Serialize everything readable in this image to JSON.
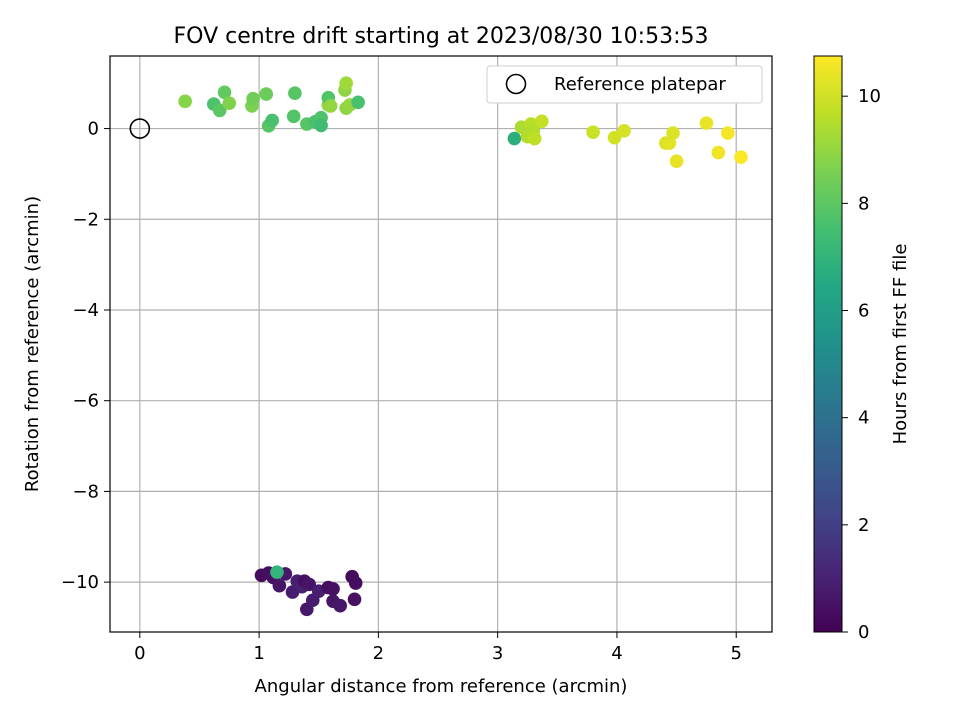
{
  "chart_data": {
    "type": "scatter",
    "title": "FOV centre drift starting at 2023/08/30 10:53:53",
    "xlabel": "Angular distance from reference (arcmin)",
    "ylabel": "Rotation from reference (arcmin)",
    "xlim": [
      -0.25,
      5.3
    ],
    "ylim": [
      -11.1,
      1.6
    ],
    "xticks": [
      0,
      1,
      2,
      3,
      4,
      5
    ],
    "xtick_labels": [
      "0",
      "1",
      "2",
      "3",
      "4",
      "5"
    ],
    "yticks": [
      0,
      -2,
      -4,
      -6,
      -8,
      -10
    ],
    "ytick_labels": [
      "0",
      "−2",
      "−4",
      "−6",
      "−8",
      "−10"
    ],
    "grid": true,
    "legend": {
      "position": "top-right",
      "label": "Reference platepar"
    },
    "reference_point": {
      "x": 0,
      "y": 0
    },
    "colorbar": {
      "label": "Hours from first FF file",
      "colormap": "viridis",
      "range": [
        0,
        10.75
      ],
      "ticks": [
        0,
        2,
        4,
        6,
        8,
        10
      ],
      "tick_labels": [
        "0",
        "2",
        "4",
        "6",
        "8",
        "10"
      ]
    },
    "points": [
      {
        "x": 1.02,
        "y": -9.85,
        "c": 0.3
      },
      {
        "x": 1.08,
        "y": -9.8,
        "c": 0.4
      },
      {
        "x": 1.12,
        "y": -9.9,
        "c": 0.5
      },
      {
        "x": 1.17,
        "y": -10.08,
        "c": 0.6
      },
      {
        "x": 1.22,
        "y": -9.82,
        "c": 0.7
      },
      {
        "x": 1.28,
        "y": -10.22,
        "c": 0.8
      },
      {
        "x": 1.32,
        "y": -9.98,
        "c": 0.9
      },
      {
        "x": 1.36,
        "y": -10.1,
        "c": 1.0
      },
      {
        "x": 1.38,
        "y": -9.98,
        "c": 0.5
      },
      {
        "x": 1.42,
        "y": -10.05,
        "c": 0.6
      },
      {
        "x": 1.4,
        "y": -10.6,
        "c": 0.7
      },
      {
        "x": 1.45,
        "y": -10.4,
        "c": 0.8
      },
      {
        "x": 1.5,
        "y": -10.2,
        "c": 0.9
      },
      {
        "x": 1.58,
        "y": -10.12,
        "c": 0.4
      },
      {
        "x": 1.62,
        "y": -10.15,
        "c": 0.5
      },
      {
        "x": 1.62,
        "y": -10.42,
        "c": 0.6
      },
      {
        "x": 1.68,
        "y": -10.52,
        "c": 0.7
      },
      {
        "x": 1.78,
        "y": -9.88,
        "c": 0.3
      },
      {
        "x": 1.81,
        "y": -10.02,
        "c": 0.4
      },
      {
        "x": 1.8,
        "y": -10.38,
        "c": 0.5
      },
      {
        "x": 1.15,
        "y": -9.78,
        "c": 7.0
      },
      {
        "x": 0.38,
        "y": 0.6,
        "c": 8.8
      },
      {
        "x": 0.62,
        "y": 0.54,
        "c": 7.7
      },
      {
        "x": 0.67,
        "y": 0.4,
        "c": 8.0
      },
      {
        "x": 0.71,
        "y": 0.8,
        "c": 8.1
      },
      {
        "x": 0.75,
        "y": 0.56,
        "c": 8.7
      },
      {
        "x": 0.94,
        "y": 0.5,
        "c": 8.6
      },
      {
        "x": 0.95,
        "y": 0.66,
        "c": 8.4
      },
      {
        "x": 1.06,
        "y": 0.76,
        "c": 8.3
      },
      {
        "x": 1.08,
        "y": 0.06,
        "c": 7.9
      },
      {
        "x": 1.11,
        "y": 0.18,
        "c": 7.6
      },
      {
        "x": 1.29,
        "y": 0.27,
        "c": 7.8
      },
      {
        "x": 1.3,
        "y": 0.78,
        "c": 7.9
      },
      {
        "x": 1.4,
        "y": 0.1,
        "c": 7.9
      },
      {
        "x": 1.47,
        "y": 0.15,
        "c": 7.6
      },
      {
        "x": 1.52,
        "y": 0.24,
        "c": 7.7
      },
      {
        "x": 1.52,
        "y": 0.07,
        "c": 7.4
      },
      {
        "x": 1.58,
        "y": 0.52,
        "c": 8.9
      },
      {
        "x": 1.58,
        "y": 0.68,
        "c": 7.8
      },
      {
        "x": 1.6,
        "y": 0.5,
        "c": 9.0
      },
      {
        "x": 1.72,
        "y": 0.85,
        "c": 8.9
      },
      {
        "x": 1.73,
        "y": 1.0,
        "c": 9.2
      },
      {
        "x": 1.73,
        "y": 0.45,
        "c": 8.9
      },
      {
        "x": 1.76,
        "y": 0.52,
        "c": 9.0
      },
      {
        "x": 1.83,
        "y": 0.58,
        "c": 7.6
      },
      {
        "x": 3.14,
        "y": -0.22,
        "c": 6.8
      },
      {
        "x": 3.2,
        "y": 0.03,
        "c": 9.4
      },
      {
        "x": 3.25,
        "y": -0.18,
        "c": 9.5
      },
      {
        "x": 3.28,
        "y": 0.1,
        "c": 9.6
      },
      {
        "x": 3.3,
        "y": -0.05,
        "c": 9.5
      },
      {
        "x": 3.31,
        "y": -0.22,
        "c": 9.7
      },
      {
        "x": 3.37,
        "y": 0.16,
        "c": 9.8
      },
      {
        "x": 3.8,
        "y": -0.08,
        "c": 9.9
      },
      {
        "x": 3.98,
        "y": -0.2,
        "c": 10.0
      },
      {
        "x": 4.06,
        "y": -0.05,
        "c": 10.1
      },
      {
        "x": 4.41,
        "y": -0.32,
        "c": 10.2
      },
      {
        "x": 4.44,
        "y": -0.32,
        "c": 10.3
      },
      {
        "x": 4.47,
        "y": -0.1,
        "c": 10.2
      },
      {
        "x": 4.5,
        "y": -0.72,
        "c": 10.4
      },
      {
        "x": 4.75,
        "y": 0.12,
        "c": 10.4
      },
      {
        "x": 4.85,
        "y": -0.53,
        "c": 10.5
      },
      {
        "x": 4.93,
        "y": -0.1,
        "c": 10.6
      },
      {
        "x": 5.04,
        "y": -0.63,
        "c": 10.7
      }
    ]
  }
}
